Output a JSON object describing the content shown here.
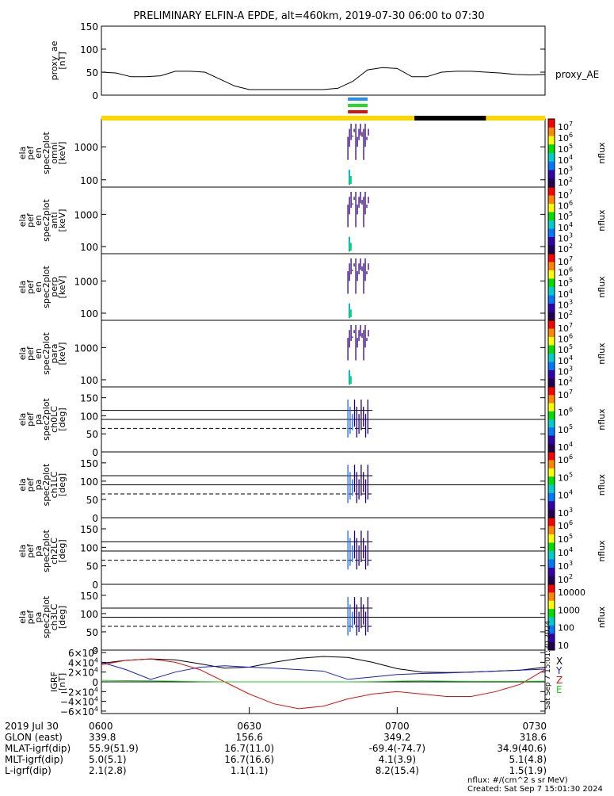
{
  "title": "PRELIMINARY ELFIN-A EPDE, alt=460km, 2019-07-30 06:00 to 07:30",
  "colors": {
    "ae_line": "#000000",
    "sci_zone_blue": "#1e90ff",
    "sci_zone_green": "#22dd22",
    "sci_zone_red": "#dd1111",
    "bar_yellow": "#ffd700",
    "bar_black": "#000000",
    "grf_x": "#000000",
    "grf_y": "#1a1acc",
    "grf_z": "#dd1111",
    "grf_e": "#22cc22"
  },
  "chart_data": [
    {
      "id": "proxy_ae",
      "type": "line",
      "ylabel": [
        "proxy_ae",
        "[nT]"
      ],
      "ylim": [
        0,
        150
      ],
      "yticks": [
        "150",
        "100",
        "50",
        "0"
      ],
      "ytick_values": [
        150,
        100,
        50,
        0
      ],
      "series_label": "proxy_AE",
      "x_minutes": [
        0,
        3,
        6,
        9,
        12,
        15,
        18,
        21,
        24,
        27,
        30,
        33,
        36,
        39,
        42,
        45,
        48,
        51,
        54,
        57,
        60,
        63,
        66,
        69,
        72,
        75,
        78,
        81,
        84,
        87,
        90
      ],
      "values": [
        50,
        48,
        40,
        40,
        42,
        52,
        52,
        50,
        35,
        20,
        12,
        12,
        12,
        12,
        12,
        12,
        15,
        30,
        55,
        60,
        58,
        40,
        40,
        50,
        52,
        52,
        50,
        48,
        45,
        44,
        45
      ]
    },
    {
      "id": "spec_omni",
      "type": "heatmap",
      "ylabel": [
        "ela",
        "pef",
        "en",
        "spec2plot",
        "omni",
        "[keV]"
      ],
      "ytick_labels": [
        "1000",
        "100"
      ],
      "ytick_values": [
        1000,
        100
      ],
      "ylog": true,
      "yrange": [
        60,
        7000
      ],
      "colorbar_label": "nflux",
      "colorbar_ticks": [
        "10",
        "10",
        "10",
        "10",
        "10",
        "10"
      ],
      "colorbar_exponents": [
        "7",
        "6",
        "5",
        "4",
        "3",
        "2"
      ],
      "colorbar_values": [
        7,
        6,
        5,
        4,
        3,
        2
      ]
    },
    {
      "id": "spec_anti",
      "type": "heatmap",
      "ylabel": [
        "ela",
        "pef",
        "en",
        "spec2plot",
        "anti",
        "[keV]"
      ],
      "ytick_labels": [
        "1000",
        "100"
      ],
      "ytick_values": [
        1000,
        100
      ],
      "ylog": true,
      "yrange": [
        60,
        7000
      ],
      "colorbar_label": "nflux",
      "colorbar_ticks": [
        "10",
        "10",
        "10",
        "10",
        "10",
        "10"
      ],
      "colorbar_exponents": [
        "7",
        "6",
        "5",
        "4",
        "3",
        "2"
      ],
      "colorbar_values": [
        7,
        6,
        5,
        4,
        3,
        2
      ]
    },
    {
      "id": "spec_perp",
      "type": "heatmap",
      "ylabel": [
        "ela",
        "pef",
        "en",
        "spec2plot",
        "perp",
        "[keV]"
      ],
      "ytick_labels": [
        "1000",
        "100"
      ],
      "ytick_values": [
        1000,
        100
      ],
      "ylog": true,
      "yrange": [
        60,
        7000
      ],
      "colorbar_label": "nflux",
      "colorbar_ticks": [
        "10",
        "10",
        "10",
        "10",
        "10",
        "10"
      ],
      "colorbar_exponents": [
        "7",
        "6",
        "5",
        "4",
        "3",
        "2"
      ],
      "colorbar_values": [
        7,
        6,
        5,
        4,
        3,
        2
      ]
    },
    {
      "id": "spec_para",
      "type": "heatmap",
      "ylabel": [
        "ela",
        "pef",
        "en",
        "spec2plot",
        "para",
        "[keV]"
      ],
      "ytick_labels": [
        "1000",
        "100"
      ],
      "ytick_values": [
        1000,
        100
      ],
      "ylog": true,
      "yrange": [
        60,
        7000
      ],
      "colorbar_label": "nflux",
      "colorbar_ticks": [
        "10",
        "10",
        "10",
        "10",
        "10",
        "10"
      ],
      "colorbar_exponents": [
        "7",
        "6",
        "5",
        "4",
        "3",
        "2"
      ],
      "colorbar_values": [
        7,
        6,
        5,
        4,
        3,
        2
      ]
    },
    {
      "id": "pa_ch0",
      "type": "heatmap",
      "ylabel": [
        "ela",
        "pef",
        "pa",
        "spec2plot",
        "ch0LC",
        "[deg]"
      ],
      "ylim": [
        0,
        180
      ],
      "yticks": [
        "150",
        "100",
        "50",
        "0"
      ],
      "ytick_values": [
        150,
        100,
        50,
        0
      ],
      "colorbar_label": "nflux",
      "colorbar_ticks": [
        "10",
        "10",
        "10",
        "10"
      ],
      "colorbar_exponents": [
        "7",
        "6",
        "5",
        "4"
      ],
      "colorbar_values": [
        7,
        6,
        5,
        4
      ]
    },
    {
      "id": "pa_ch1",
      "type": "heatmap",
      "ylabel": [
        "ela",
        "pef",
        "pa",
        "spec2plot",
        "ch1LC",
        "[deg]"
      ],
      "ylim": [
        0,
        180
      ],
      "yticks": [
        "150",
        "100",
        "50",
        "0"
      ],
      "ytick_values": [
        150,
        100,
        50,
        0
      ],
      "colorbar_label": "nflux",
      "colorbar_ticks": [
        "10",
        "10",
        "10",
        "10"
      ],
      "colorbar_exponents": [
        "6",
        "5",
        "4",
        "3"
      ],
      "colorbar_values": [
        6,
        5,
        4,
        3
      ]
    },
    {
      "id": "pa_ch2",
      "type": "heatmap",
      "ylabel": [
        "ela",
        "pef",
        "pa",
        "spec2plot",
        "ch2LC",
        "[deg]"
      ],
      "ylim": [
        0,
        180
      ],
      "yticks": [
        "150",
        "100",
        "50",
        "0"
      ],
      "ytick_values": [
        150,
        100,
        50,
        0
      ],
      "colorbar_label": "nflux",
      "colorbar_ticks": [
        "10",
        "10",
        "10",
        "10",
        "10"
      ],
      "colorbar_exponents": [
        "6",
        "5",
        "4",
        "3",
        "2"
      ],
      "colorbar_values": [
        6,
        5,
        4,
        3,
        2
      ]
    },
    {
      "id": "pa_ch3",
      "type": "heatmap",
      "ylabel": [
        "ela",
        "pef",
        "pa",
        "spec2plot",
        "ch3LC",
        "[deg]"
      ],
      "ylim": [
        0,
        180
      ],
      "yticks": [
        "150",
        "100",
        "50",
        "0"
      ],
      "ytick_values": [
        150,
        100,
        50,
        0
      ],
      "colorbar_label": "nflux",
      "colorbar_ticks": [
        "10000",
        "1000",
        "100",
        "10"
      ],
      "colorbar_values": [
        4,
        3,
        2,
        1
      ]
    },
    {
      "id": "igrf",
      "type": "line",
      "ylabel": [
        "IGRF",
        "[nT]"
      ],
      "ylim": [
        -65000,
        65000
      ],
      "yticks": [
        "6×10",
        "4×10",
        "2×10",
        "0",
        "−2×10",
        "−4×10",
        "−6×10"
      ],
      "ytick_exponents": [
        "4",
        "4",
        "4",
        "",
        "4",
        "4",
        "4"
      ],
      "ytick_values": [
        60000,
        40000,
        20000,
        0,
        -20000,
        -40000,
        -60000
      ],
      "legend": [
        "X",
        "Y",
        "Z",
        "E"
      ],
      "x_minutes": [
        0,
        5,
        10,
        15,
        20,
        25,
        30,
        35,
        40,
        45,
        50,
        55,
        60,
        65,
        70,
        75,
        80,
        85,
        90
      ],
      "series": [
        {
          "values": [
            38000,
            44000,
            47000,
            45000,
            37000,
            28000,
            30000,
            40000,
            48000,
            52000,
            50000,
            40000,
            27000,
            20000,
            19000,
            20000,
            22000,
            24000,
            30000
          ]
        },
        {
          "values": [
            40000,
            25000,
            5000,
            20000,
            30000,
            33000,
            30000,
            28000,
            25000,
            22000,
            5000,
            10000,
            15000,
            17000,
            18000,
            20000,
            22000,
            24000,
            26000
          ]
        },
        {
          "values": [
            35000,
            44000,
            47000,
            40000,
            25000,
            0,
            -25000,
            -45000,
            -55000,
            -50000,
            -35000,
            -25000,
            -20000,
            -25000,
            -30000,
            -30000,
            -20000,
            -5000,
            25000
          ]
        },
        {
          "values": [
            3000,
            2500,
            2000,
            1500,
            500,
            0,
            0,
            0,
            0,
            0,
            0,
            500,
            1500,
            2000,
            1500,
            1000,
            1000,
            1000,
            1500
          ]
        }
      ]
    }
  ],
  "x_axis": {
    "tick_labels": [
      "0600",
      "0630",
      "0700",
      "0730"
    ],
    "tick_minutes": [
      0,
      30,
      60,
      90
    ],
    "range_minutes": [
      0,
      90
    ]
  },
  "ephemeris": {
    "row_labels": [
      "2019 Jul 30",
      "GLON (east)",
      "MLAT-igrf(dip)",
      "MLT-igrf(dip)",
      "L-igrf(dip)"
    ],
    "columns": [
      [
        "0600",
        "339.8",
        "55.9(51.9)",
        "5.0(5.1)",
        "2.1(2.8)"
      ],
      [
        "0630",
        "156.6",
        "16.7(11.0)",
        "16.7(16.6)",
        "1.1(1.1)"
      ],
      [
        "0700",
        "349.2",
        "-69.4(-74.7)",
        "4.1(3.9)",
        "8.2(15.4)"
      ],
      [
        "0730",
        "318.6",
        "34.9(40.6)",
        "5.1(4.8)",
        "1.5(1.9)"
      ]
    ]
  },
  "footer": {
    "units": "nflux: #/(cm^2 s sr MeV)",
    "created": "Created: Sat Sep  7 15:01:30 2024"
  },
  "side_stamp": "Sat Sep  7 15:01:30 2024"
}
